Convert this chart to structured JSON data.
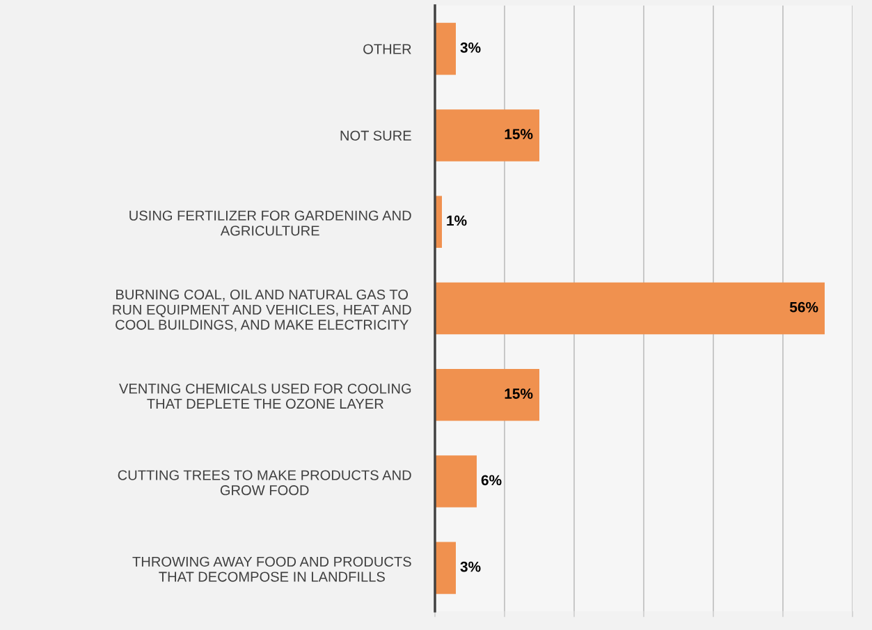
{
  "chart_data": {
    "type": "bar",
    "orientation": "horizontal",
    "categories": [
      "OTHER",
      "NOT SURE",
      "USING FERTILIZER FOR GARDENING AND\nAGRICULTURE",
      "BURNING COAL, OIL AND NATURAL GAS TO\nRUN EQUIPMENT AND VEHICLES, HEAT AND\nCOOL BUILDINGS, AND MAKE ELECTRICITY",
      "VENTING CHEMICALS USED FOR COOLING\nTHAT DEPLETE THE OZONE LAYER",
      "CUTTING TREES TO MAKE PRODUCTS AND\nGROW FOOD",
      "THROWING AWAY FOOD AND PRODUCTS\nTHAT DECOMPOSE IN LANDFILLS"
    ],
    "values": [
      3,
      15,
      1,
      56,
      15,
      6,
      3
    ],
    "value_labels": [
      "3%",
      "15%",
      "1%",
      "56%",
      "15%",
      "6%",
      "3%"
    ],
    "color": "#f0914f",
    "xlim": [
      0,
      60
    ],
    "xticks": [
      {
        "value": 0,
        "label": null
      },
      {
        "value": 10,
        "label": null
      },
      {
        "value": 20,
        "label": null
      },
      {
        "value": 30,
        "label": null
      },
      {
        "value": 40,
        "label": null
      },
      {
        "value": 50,
        "label": null
      },
      {
        "value": 60,
        "label": null
      }
    ],
    "tick_labels": "y",
    "grid": "x",
    "legend": false
  }
}
